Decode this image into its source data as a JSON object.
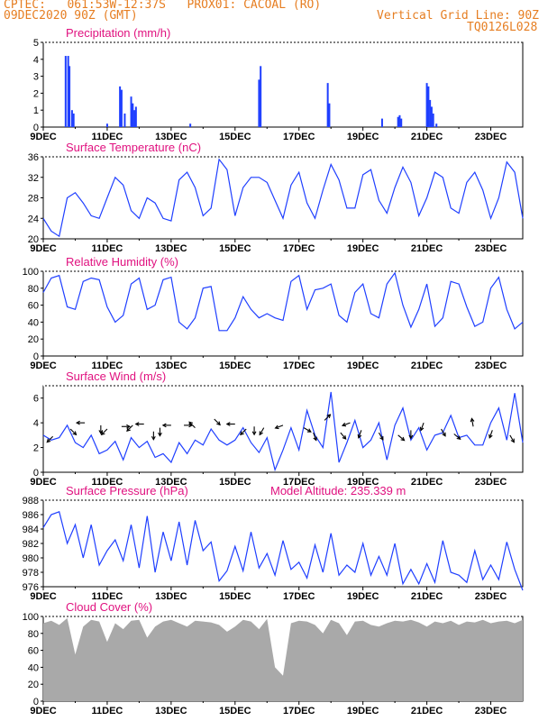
{
  "header": {
    "line1": "CPTEC:   061:53W-12:37S   PROX01: CACOAL (RO)",
    "line2": "09DEC2020 90Z (GMT)",
    "vgrid": "Vertical Grid Line: 90Z",
    "code": "TQ0126L028"
  },
  "colors": {
    "header": "#e67e22",
    "title": "#e0117f",
    "series": "#1f3fff",
    "cloud": "#a9a9a9",
    "axis": "#000000"
  },
  "x_ticks": [
    "9DEC",
    "11DEC",
    "13DEC",
    "15DEC",
    "17DEC",
    "19DEC",
    "21DEC",
    "23DEC"
  ],
  "chart_data": [
    {
      "id": "precip",
      "type": "bar",
      "title": "Precipitation (mm/h)",
      "ylim": [
        0,
        5
      ],
      "yticks": [
        0,
        1,
        2,
        3,
        4,
        5
      ],
      "x_unit": "days since 09DEC",
      "points": [
        [
          0.7,
          4.2
        ],
        [
          0.78,
          4.2
        ],
        [
          0.82,
          3.6
        ],
        [
          0.9,
          1.0
        ],
        [
          0.95,
          0.8
        ],
        [
          2.0,
          0.2
        ],
        [
          2.4,
          2.4
        ],
        [
          2.45,
          2.2
        ],
        [
          2.55,
          0.8
        ],
        [
          2.75,
          1.8
        ],
        [
          2.8,
          1.4
        ],
        [
          2.85,
          1.0
        ],
        [
          2.9,
          1.2
        ],
        [
          4.6,
          0.2
        ],
        [
          6.75,
          2.8
        ],
        [
          6.8,
          3.6
        ],
        [
          8.9,
          2.6
        ],
        [
          8.95,
          1.4
        ],
        [
          10.6,
          0.5
        ],
        [
          11.1,
          0.6
        ],
        [
          11.15,
          0.7
        ],
        [
          11.2,
          0.5
        ],
        [
          12.0,
          2.6
        ],
        [
          12.05,
          2.4
        ],
        [
          12.1,
          1.6
        ],
        [
          12.15,
          1.2
        ],
        [
          12.2,
          0.8
        ],
        [
          12.3,
          0.2
        ]
      ]
    },
    {
      "id": "temp",
      "type": "line",
      "title": "Surface Temperature (nC)",
      "ylim": [
        20,
        36
      ],
      "yticks": [
        20,
        24,
        28,
        32,
        36
      ],
      "x": [
        0,
        0.25,
        0.5,
        0.75,
        1.0,
        1.25,
        1.5,
        1.75,
        2.0,
        2.25,
        2.5,
        2.75,
        3.0,
        3.25,
        3.5,
        3.75,
        4.0,
        4.25,
        4.5,
        4.75,
        5.0,
        5.25,
        5.5,
        5.75,
        6.0,
        6.25,
        6.5,
        6.75,
        7.0,
        7.25,
        7.5,
        7.75,
        8.0,
        8.25,
        8.5,
        8.75,
        9.0,
        9.25,
        9.5,
        9.75,
        10.0,
        10.25,
        10.5,
        10.75,
        11.0,
        11.25,
        11.5,
        11.75,
        12.0,
        12.25,
        12.5,
        12.75,
        13.0,
        13.25,
        13.5,
        13.75,
        14.0,
        14.25,
        14.5,
        14.75,
        15.0
      ],
      "values": [
        24,
        21.5,
        20.5,
        28,
        29,
        27,
        24.5,
        24,
        28,
        32,
        30.5,
        25.5,
        24,
        28,
        27,
        24,
        23.5,
        31.5,
        33,
        30,
        24.5,
        26,
        35.5,
        33.5,
        24.5,
        30,
        32,
        32,
        31,
        27.5,
        24,
        30.5,
        33,
        27,
        24,
        29.5,
        34.5,
        31.5,
        26,
        26,
        32.5,
        33.5,
        27.5,
        25,
        30,
        34,
        31,
        24.5,
        28,
        33,
        32,
        26,
        25,
        31,
        33,
        29.5,
        24,
        28,
        35,
        33,
        24
      ]
    },
    {
      "id": "rh",
      "type": "line",
      "title": "Relative Humidity (%)",
      "ylim": [
        0,
        100
      ],
      "yticks": [
        0,
        20,
        40,
        60,
        80,
        100
      ],
      "x": [
        0,
        0.25,
        0.5,
        0.75,
        1.0,
        1.25,
        1.5,
        1.75,
        2.0,
        2.25,
        2.5,
        2.75,
        3.0,
        3.25,
        3.5,
        3.75,
        4.0,
        4.25,
        4.5,
        4.75,
        5.0,
        5.25,
        5.5,
        5.75,
        6.0,
        6.25,
        6.5,
        6.75,
        7.0,
        7.25,
        7.5,
        7.75,
        8.0,
        8.25,
        8.5,
        8.75,
        9.0,
        9.25,
        9.5,
        9.75,
        10.0,
        10.25,
        10.5,
        10.75,
        11.0,
        11.25,
        11.5,
        11.75,
        12.0,
        12.25,
        12.5,
        12.75,
        13.0,
        13.25,
        13.5,
        13.75,
        14.0,
        14.25,
        14.5,
        14.75,
        15.0
      ],
      "values": [
        75,
        92,
        95,
        58,
        55,
        88,
        92,
        90,
        58,
        40,
        48,
        85,
        92,
        55,
        60,
        90,
        93,
        40,
        32,
        45,
        80,
        82,
        30,
        30,
        45,
        70,
        55,
        45,
        50,
        45,
        42,
        88,
        95,
        55,
        78,
        80,
        85,
        48,
        40,
        75,
        85,
        50,
        45,
        85,
        98,
        60,
        34,
        55,
        85,
        35,
        45,
        88,
        85,
        58,
        35,
        40,
        80,
        93,
        55,
        32,
        40
      ]
    },
    {
      "id": "wind",
      "type": "line",
      "title": "Surface Wind (m/s)",
      "ylim": [
        0,
        7
      ],
      "yticks": [
        0,
        2,
        4,
        6
      ],
      "x": [
        0,
        0.25,
        0.5,
        0.75,
        1.0,
        1.25,
        1.5,
        1.75,
        2.0,
        2.25,
        2.5,
        2.75,
        3.0,
        3.25,
        3.5,
        3.75,
        4.0,
        4.25,
        4.5,
        4.75,
        5.0,
        5.25,
        5.5,
        5.75,
        6.0,
        6.25,
        6.5,
        6.75,
        7.0,
        7.25,
        7.5,
        7.75,
        8.0,
        8.25,
        8.5,
        8.75,
        9.0,
        9.25,
        9.5,
        9.75,
        10.0,
        10.25,
        10.5,
        10.75,
        11.0,
        11.25,
        11.5,
        11.75,
        12.0,
        12.25,
        12.5,
        12.75,
        13.0,
        13.25,
        13.5,
        13.75,
        14.0,
        14.25,
        14.5,
        14.75,
        15.0
      ],
      "values": [
        3.0,
        2.6,
        2.8,
        3.8,
        2.4,
        2.0,
        3.0,
        1.5,
        1.8,
        2.5,
        1.0,
        2.8,
        2.0,
        2.5,
        1.2,
        1.5,
        0.8,
        2.4,
        1.5,
        2.6,
        2.2,
        3.5,
        2.6,
        2.2,
        2.6,
        3.6,
        2.4,
        1.6,
        2.8,
        0.2,
        1.8,
        3.6,
        1.8,
        5.0,
        3.0,
        2.0,
        6.5,
        0.8,
        2.4,
        4.2,
        2.0,
        2.6,
        4.0,
        1.0,
        3.8,
        5.2,
        2.6,
        3.6,
        1.8,
        3.0,
        3.2,
        4.6,
        2.8,
        3.0,
        2.2,
        2.2,
        4.0,
        5.2,
        2.6,
        6.4,
        2.4
      ],
      "arrows": [
        [
          0.3,
          2.9,
          225
        ],
        [
          0.85,
          3.5,
          315
        ],
        [
          1.3,
          4.0,
          180
        ],
        [
          1.8,
          3.8,
          270
        ],
        [
          2.0,
          3.5,
          225
        ],
        [
          2.45,
          3.7,
          0
        ],
        [
          2.8,
          3.8,
          225
        ],
        [
          3.15,
          3.9,
          180
        ],
        [
          3.45,
          3.3,
          270
        ],
        [
          3.65,
          3.6,
          270
        ],
        [
          4.0,
          3.8,
          180
        ],
        [
          4.4,
          3.8,
          0
        ],
        [
          4.75,
          3.6,
          135
        ],
        [
          5.35,
          4.3,
          315
        ],
        [
          6.0,
          3.9,
          180
        ],
        [
          6.35,
          3.5,
          225
        ],
        [
          6.6,
          3.7,
          270
        ],
        [
          6.9,
          3.6,
          240
        ],
        [
          7.5,
          3.8,
          200
        ],
        [
          8.15,
          3.6,
          330
        ],
        [
          8.45,
          3.2,
          290
        ],
        [
          8.8,
          4.2,
          45
        ],
        [
          9.3,
          3.2,
          310
        ],
        [
          9.6,
          4.0,
          200
        ],
        [
          9.95,
          3.4,
          250
        ],
        [
          10.5,
          3.2,
          300
        ],
        [
          11.1,
          3.0,
          320
        ],
        [
          11.5,
          3.4,
          270
        ],
        [
          11.9,
          4.0,
          250
        ],
        [
          12.45,
          3.5,
          300
        ],
        [
          12.85,
          3.1,
          320
        ],
        [
          13.45,
          3.7,
          100
        ],
        [
          14.05,
          3.4,
          250
        ],
        [
          14.6,
          3.0,
          300
        ]
      ]
    },
    {
      "id": "pres",
      "type": "line",
      "title": "Surface Pressure (hPa)",
      "annotation": "Model Altitude: 235.339 m",
      "ylim": [
        976,
        988
      ],
      "yticks": [
        976,
        978,
        980,
        982,
        984,
        986,
        988
      ],
      "x": [
        0,
        0.25,
        0.5,
        0.75,
        1.0,
        1.25,
        1.5,
        1.75,
        2.0,
        2.25,
        2.5,
        2.75,
        3.0,
        3.25,
        3.5,
        3.75,
        4.0,
        4.25,
        4.5,
        4.75,
        5.0,
        5.25,
        5.5,
        5.75,
        6.0,
        6.25,
        6.5,
        6.75,
        7.0,
        7.25,
        7.5,
        7.75,
        8.0,
        8.25,
        8.5,
        8.75,
        9.0,
        9.25,
        9.5,
        9.75,
        10.0,
        10.25,
        10.5,
        10.75,
        11.0,
        11.25,
        11.5,
        11.75,
        12.0,
        12.25,
        12.5,
        12.75,
        13.0,
        13.25,
        13.5,
        13.75,
        14.0,
        14.25,
        14.5,
        14.75,
        15.0
      ],
      "values": [
        984.2,
        986.0,
        986.4,
        982.0,
        984.6,
        980.0,
        984.6,
        979.0,
        981.0,
        982.5,
        979.6,
        984.6,
        978.6,
        985.8,
        978.0,
        983.6,
        979.6,
        985.0,
        979.0,
        985.2,
        981.0,
        982.2,
        976.8,
        978.2,
        981.6,
        978.2,
        983.6,
        978.6,
        980.6,
        977.6,
        982.4,
        978.4,
        979.4,
        977.2,
        981.8,
        978.0,
        983.4,
        977.6,
        979.0,
        978.0,
        982.0,
        977.6,
        980.2,
        977.6,
        982.0,
        976.4,
        978.4,
        976.4,
        979.2,
        976.6,
        982.4,
        978.0,
        977.6,
        976.6,
        981.0,
        977.0,
        979.0,
        977.0,
        982.2,
        978.4,
        975.5
      ]
    },
    {
      "id": "cloud",
      "type": "area",
      "title": "Cloud Cover (%)",
      "ylim": [
        0,
        100
      ],
      "yticks": [
        0,
        20,
        40,
        60,
        80,
        100
      ],
      "x": [
        0,
        0.25,
        0.5,
        0.75,
        1.0,
        1.25,
        1.5,
        1.75,
        2.0,
        2.25,
        2.5,
        2.75,
        3.0,
        3.25,
        3.5,
        3.75,
        4.0,
        4.25,
        4.5,
        4.75,
        5.0,
        5.25,
        5.5,
        5.75,
        6.0,
        6.25,
        6.5,
        6.75,
        7.0,
        7.25,
        7.5,
        7.75,
        8.0,
        8.25,
        8.5,
        8.75,
        9.0,
        9.25,
        9.5,
        9.75,
        10.0,
        10.25,
        10.5,
        10.75,
        11.0,
        11.25,
        11.5,
        11.75,
        12.0,
        12.25,
        12.5,
        12.75,
        13.0,
        13.25,
        13.5,
        13.75,
        14.0,
        14.25,
        14.5,
        14.75,
        15.0
      ],
      "values": [
        92,
        95,
        90,
        98,
        55,
        88,
        96,
        94,
        70,
        92,
        85,
        95,
        96,
        75,
        88,
        94,
        96,
        92,
        88,
        95,
        94,
        93,
        90,
        82,
        88,
        96,
        94,
        85,
        97,
        40,
        30,
        92,
        95,
        94,
        90,
        80,
        96,
        92,
        78,
        94,
        95,
        90,
        88,
        92,
        95,
        94,
        96,
        93,
        88,
        94,
        92,
        95,
        90,
        94,
        93,
        96,
        92,
        94,
        95,
        92,
        96
      ]
    }
  ]
}
